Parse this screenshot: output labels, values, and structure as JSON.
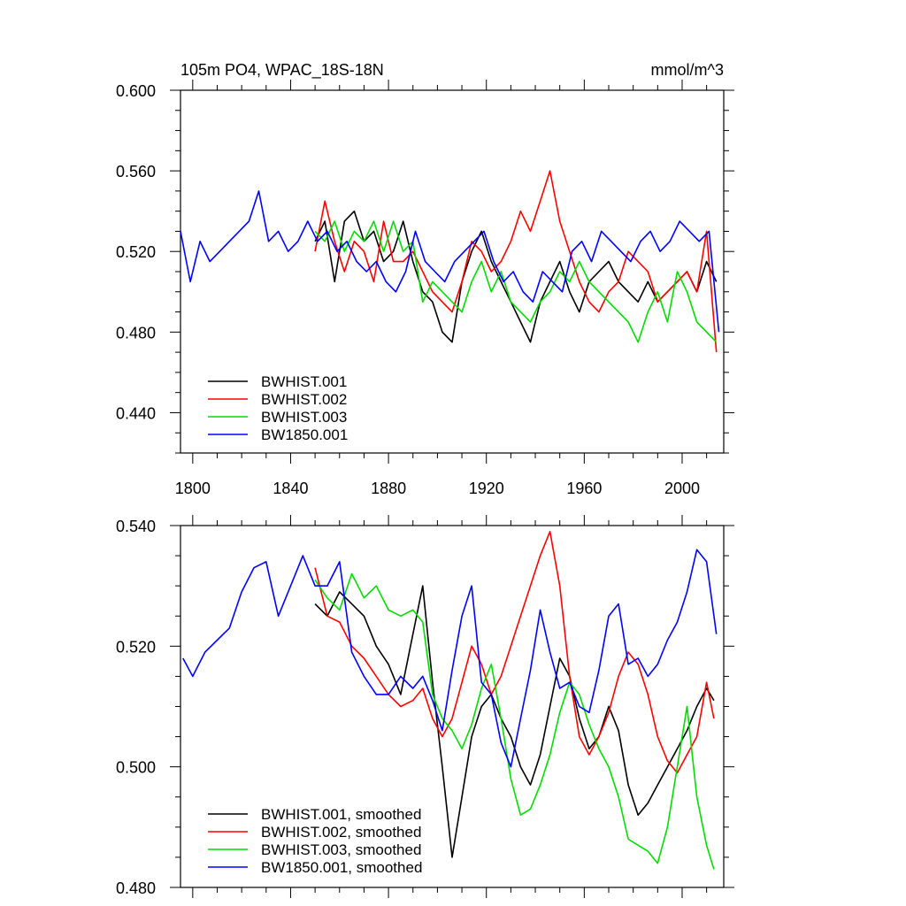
{
  "chart_data": [
    {
      "type": "line",
      "title": "105m PO4, WPAC_18S-18N",
      "units": "mmol/m^3",
      "xlim": [
        1795,
        2017
      ],
      "ylim": [
        0.42,
        0.6
      ],
      "x_ticks": [
        1800,
        1840,
        1880,
        1920,
        1960,
        2000
      ],
      "x_tick_labels": [
        "1800",
        "1840",
        "1880",
        "1920",
        "1960",
        "2000"
      ],
      "y_ticks": [
        0.44,
        0.48,
        0.52,
        0.56,
        0.6
      ],
      "y_tick_labels": [
        "0.440",
        "0.480",
        "0.520",
        "0.560",
        "0.600"
      ],
      "legend_position": "bottom-left",
      "series": [
        {
          "name": "BWHIST.001",
          "color": "#000000",
          "x": [
            1850,
            1854,
            1858,
            1862,
            1866,
            1870,
            1874,
            1878,
            1882,
            1886,
            1890,
            1894,
            1898,
            1902,
            1906,
            1910,
            1914,
            1918,
            1922,
            1926,
            1930,
            1934,
            1938,
            1942,
            1946,
            1950,
            1954,
            1958,
            1962,
            1966,
            1970,
            1974,
            1978,
            1982,
            1986,
            1990,
            1994,
            1998,
            2002,
            2006,
            2010,
            2014
          ],
          "y": [
            0.525,
            0.535,
            0.505,
            0.535,
            0.54,
            0.525,
            0.53,
            0.515,
            0.52,
            0.535,
            0.515,
            0.5,
            0.495,
            0.48,
            0.475,
            0.505,
            0.52,
            0.53,
            0.515,
            0.505,
            0.495,
            0.485,
            0.475,
            0.495,
            0.505,
            0.515,
            0.5,
            0.49,
            0.505,
            0.51,
            0.515,
            0.505,
            0.5,
            0.495,
            0.505,
            0.495,
            0.5,
            0.505,
            0.51,
            0.5,
            0.515,
            0.505
          ]
        },
        {
          "name": "BWHIST.002",
          "color": "#ff0000",
          "x": [
            1850,
            1854,
            1858,
            1862,
            1866,
            1870,
            1874,
            1878,
            1882,
            1886,
            1890,
            1894,
            1898,
            1902,
            1906,
            1910,
            1914,
            1918,
            1922,
            1926,
            1930,
            1934,
            1938,
            1942,
            1946,
            1950,
            1954,
            1958,
            1962,
            1966,
            1970,
            1974,
            1978,
            1982,
            1986,
            1990,
            1994,
            1998,
            2002,
            2006,
            2010,
            2014
          ],
          "y": [
            0.52,
            0.545,
            0.525,
            0.51,
            0.525,
            0.52,
            0.505,
            0.535,
            0.515,
            0.515,
            0.52,
            0.51,
            0.5,
            0.495,
            0.49,
            0.505,
            0.525,
            0.52,
            0.51,
            0.515,
            0.525,
            0.54,
            0.53,
            0.545,
            0.56,
            0.535,
            0.52,
            0.505,
            0.495,
            0.49,
            0.5,
            0.505,
            0.52,
            0.515,
            0.51,
            0.495,
            0.5,
            0.505,
            0.51,
            0.5,
            0.53,
            0.47
          ]
        },
        {
          "name": "BWHIST.003",
          "color": "#00dd00",
          "x": [
            1850,
            1854,
            1858,
            1862,
            1866,
            1870,
            1874,
            1878,
            1882,
            1886,
            1890,
            1894,
            1898,
            1902,
            1906,
            1910,
            1914,
            1918,
            1922,
            1926,
            1930,
            1934,
            1938,
            1942,
            1946,
            1950,
            1954,
            1958,
            1962,
            1966,
            1970,
            1974,
            1978,
            1982,
            1986,
            1990,
            1994,
            1998,
            2002,
            2006,
            2010,
            2014
          ],
          "y": [
            0.53,
            0.525,
            0.535,
            0.52,
            0.53,
            0.525,
            0.535,
            0.52,
            0.535,
            0.52,
            0.525,
            0.495,
            0.505,
            0.5,
            0.495,
            0.49,
            0.505,
            0.515,
            0.5,
            0.51,
            0.495,
            0.49,
            0.485,
            0.495,
            0.5,
            0.51,
            0.505,
            0.515,
            0.505,
            0.5,
            0.495,
            0.49,
            0.485,
            0.475,
            0.49,
            0.5,
            0.485,
            0.51,
            0.5,
            0.485,
            0.48,
            0.475
          ]
        },
        {
          "name": "BW1850.001",
          "color": "#0000ff",
          "x": [
            1795,
            1799,
            1803,
            1807,
            1811,
            1815,
            1819,
            1823,
            1827,
            1831,
            1835,
            1839,
            1843,
            1847,
            1851,
            1855,
            1859,
            1863,
            1867,
            1871,
            1875,
            1879,
            1883,
            1887,
            1891,
            1895,
            1899,
            1903,
            1907,
            1911,
            1915,
            1919,
            1923,
            1927,
            1931,
            1935,
            1939,
            1943,
            1947,
            1951,
            1955,
            1959,
            1963,
            1967,
            1971,
            1975,
            1979,
            1983,
            1987,
            1991,
            1995,
            1999,
            2003,
            2007,
            2011,
            2015
          ],
          "y": [
            0.53,
            0.505,
            0.525,
            0.515,
            0.52,
            0.525,
            0.53,
            0.535,
            0.55,
            0.525,
            0.53,
            0.52,
            0.525,
            0.535,
            0.525,
            0.53,
            0.52,
            0.525,
            0.515,
            0.51,
            0.515,
            0.505,
            0.5,
            0.51,
            0.53,
            0.515,
            0.51,
            0.505,
            0.515,
            0.52,
            0.525,
            0.53,
            0.515,
            0.505,
            0.51,
            0.5,
            0.495,
            0.51,
            0.505,
            0.5,
            0.52,
            0.525,
            0.515,
            0.53,
            0.525,
            0.52,
            0.515,
            0.525,
            0.53,
            0.52,
            0.525,
            0.535,
            0.53,
            0.525,
            0.53,
            0.48
          ]
        }
      ]
    },
    {
      "type": "line",
      "title": "",
      "xlim": [
        1795,
        2017
      ],
      "ylim": [
        0.48,
        0.54
      ],
      "x_ticks": [
        1800,
        1840,
        1880,
        1920,
        1960,
        2000
      ],
      "y_ticks": [
        0.48,
        0.5,
        0.52,
        0.54
      ],
      "y_tick_labels": [
        "0.480",
        "0.500",
        "0.520",
        "0.540"
      ],
      "legend_position": "bottom-left",
      "series": [
        {
          "name": "BWHIST.001, smoothed",
          "color": "#000000",
          "x": [
            1850,
            1855,
            1860,
            1865,
            1870,
            1875,
            1880,
            1885,
            1890,
            1894,
            1898,
            1902,
            1906,
            1910,
            1914,
            1918,
            1922,
            1926,
            1930,
            1934,
            1938,
            1942,
            1946,
            1950,
            1954,
            1958,
            1962,
            1966,
            1970,
            1974,
            1978,
            1982,
            1986,
            1990,
            1994,
            1998,
            2002,
            2006,
            2010,
            2013
          ],
          "y": [
            0.527,
            0.525,
            0.529,
            0.527,
            0.525,
            0.52,
            0.517,
            0.512,
            0.522,
            0.53,
            0.514,
            0.5,
            0.485,
            0.495,
            0.505,
            0.51,
            0.512,
            0.508,
            0.505,
            0.5,
            0.497,
            0.502,
            0.51,
            0.518,
            0.515,
            0.508,
            0.503,
            0.505,
            0.51,
            0.506,
            0.497,
            0.492,
            0.494,
            0.497,
            0.5,
            0.503,
            0.506,
            0.51,
            0.513,
            0.511
          ]
        },
        {
          "name": "BWHIST.002, smoothed",
          "color": "#ff0000",
          "x": [
            1850,
            1855,
            1860,
            1865,
            1870,
            1875,
            1880,
            1885,
            1890,
            1894,
            1898,
            1902,
            1906,
            1910,
            1914,
            1918,
            1922,
            1926,
            1930,
            1934,
            1938,
            1942,
            1946,
            1950,
            1954,
            1958,
            1962,
            1966,
            1970,
            1974,
            1978,
            1982,
            1986,
            1990,
            1994,
            1998,
            2002,
            2006,
            2010,
            2013
          ],
          "y": [
            0.533,
            0.525,
            0.524,
            0.52,
            0.518,
            0.515,
            0.512,
            0.51,
            0.511,
            0.513,
            0.508,
            0.505,
            0.508,
            0.514,
            0.52,
            0.517,
            0.512,
            0.515,
            0.52,
            0.525,
            0.53,
            0.535,
            0.539,
            0.53,
            0.515,
            0.505,
            0.502,
            0.505,
            0.509,
            0.515,
            0.519,
            0.517,
            0.512,
            0.505,
            0.501,
            0.499,
            0.502,
            0.505,
            0.514,
            0.508
          ]
        },
        {
          "name": "BWHIST.003, smoothed",
          "color": "#00dd00",
          "x": [
            1850,
            1855,
            1860,
            1865,
            1870,
            1875,
            1880,
            1885,
            1890,
            1894,
            1898,
            1902,
            1906,
            1910,
            1914,
            1918,
            1922,
            1926,
            1930,
            1934,
            1938,
            1942,
            1946,
            1950,
            1954,
            1958,
            1962,
            1966,
            1970,
            1974,
            1978,
            1982,
            1986,
            1990,
            1994,
            1998,
            2002,
            2006,
            2010,
            2013
          ],
          "y": [
            0.531,
            0.528,
            0.526,
            0.532,
            0.528,
            0.53,
            0.526,
            0.525,
            0.526,
            0.524,
            0.512,
            0.508,
            0.506,
            0.503,
            0.507,
            0.513,
            0.517,
            0.508,
            0.498,
            0.492,
            0.493,
            0.497,
            0.502,
            0.509,
            0.514,
            0.512,
            0.507,
            0.503,
            0.5,
            0.495,
            0.488,
            0.487,
            0.486,
            0.484,
            0.49,
            0.5,
            0.51,
            0.495,
            0.487,
            0.483
          ]
        },
        {
          "name": "BW1850.001, smoothed",
          "color": "#0000ff",
          "x": [
            1796,
            1800,
            1805,
            1810,
            1815,
            1820,
            1825,
            1830,
            1835,
            1840,
            1845,
            1850,
            1855,
            1860,
            1865,
            1870,
            1875,
            1880,
            1885,
            1890,
            1894,
            1898,
            1902,
            1906,
            1910,
            1914,
            1918,
            1922,
            1926,
            1930,
            1934,
            1938,
            1942,
            1946,
            1950,
            1954,
            1958,
            1962,
            1966,
            1970,
            1974,
            1978,
            1982,
            1986,
            1990,
            1994,
            1998,
            2002,
            2006,
            2010,
            2014
          ],
          "y": [
            0.518,
            0.515,
            0.519,
            0.521,
            0.523,
            0.529,
            0.533,
            0.534,
            0.525,
            0.53,
            0.535,
            0.53,
            0.53,
            0.534,
            0.519,
            0.515,
            0.512,
            0.512,
            0.515,
            0.513,
            0.515,
            0.511,
            0.506,
            0.516,
            0.525,
            0.53,
            0.514,
            0.512,
            0.504,
            0.5,
            0.508,
            0.516,
            0.526,
            0.519,
            0.513,
            0.514,
            0.51,
            0.509,
            0.516,
            0.525,
            0.527,
            0.517,
            0.518,
            0.515,
            0.517,
            0.521,
            0.524,
            0.529,
            0.536,
            0.534,
            0.522
          ]
        }
      ]
    }
  ]
}
